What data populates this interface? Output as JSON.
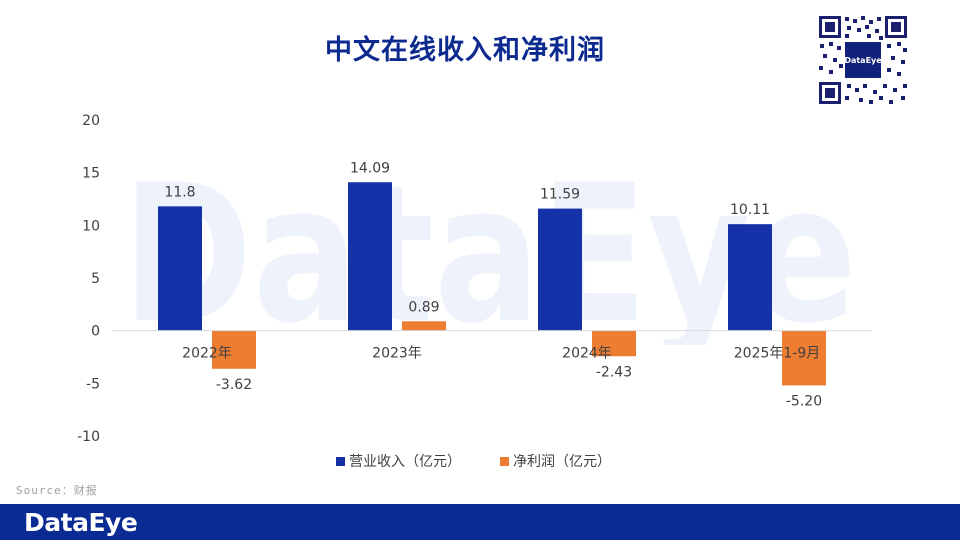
{
  "title": "中文在线收入和净利润",
  "watermark_text": "DataEye",
  "qr_center_text": "DataEye",
  "source": "Source：财报",
  "footer_logo": "DataEye",
  "colors": {
    "revenue": "#1431a8",
    "profit": "#ed7d31",
    "title": "#0d2a8f",
    "footer": "#0a2b93"
  },
  "chart_data": {
    "type": "bar",
    "title": "中文在线收入和净利润",
    "categories": [
      "2022年",
      "2023年",
      "2024年",
      "2025年1-9月"
    ],
    "series": [
      {
        "name": "营业收入（亿元）",
        "values": [
          11.8,
          14.09,
          11.59,
          10.11
        ],
        "labels": [
          "11.8",
          "14.09",
          "11.59",
          "10.11"
        ]
      },
      {
        "name": "净利润（亿元）",
        "values": [
          -3.62,
          0.89,
          -2.43,
          -5.2
        ],
        "labels": [
          "-3.62",
          "0.89",
          "-2.43",
          "-5.20"
        ]
      }
    ],
    "yticks": [
      "20",
      "15",
      "10",
      "5",
      "0",
      "-5",
      "-10"
    ],
    "ylim": [
      -10,
      20
    ],
    "grid": false,
    "legend_position": "bottom"
  }
}
